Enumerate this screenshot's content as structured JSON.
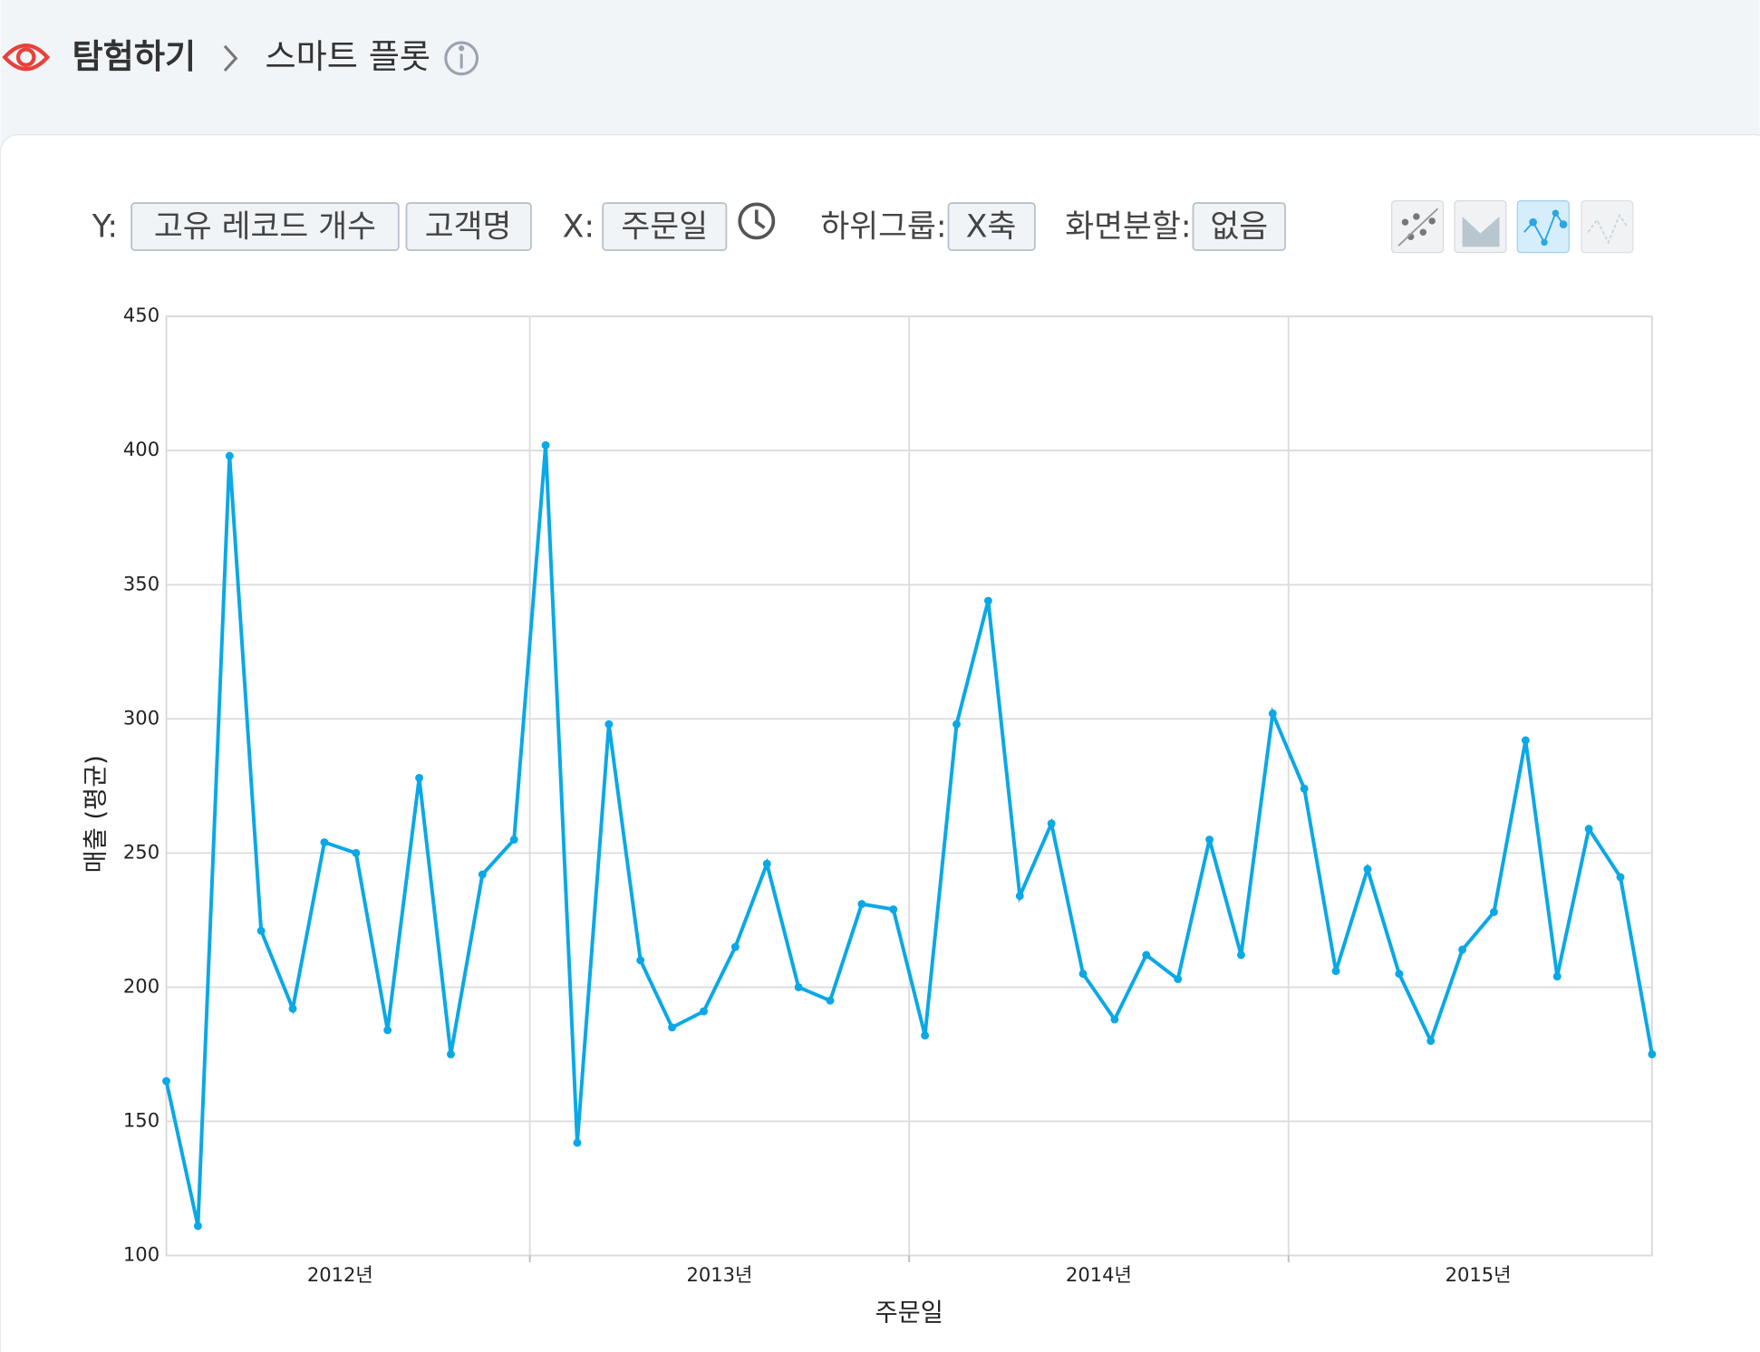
{
  "header": {
    "section": "탐험하기",
    "page": "스마트 플롯"
  },
  "controls": {
    "y_label": "Y:",
    "y_fields": [
      "고유 레코드 개수",
      "고객명"
    ],
    "x_label": "X:",
    "x_field": "주문일",
    "subgroup_label": "하위그룹:",
    "subgroup": "X축",
    "split_label": "화면분할:",
    "split": "없음"
  },
  "chart_data": {
    "type": "line",
    "categories": [
      null,
      null,
      null,
      null,
      null,
      null,
      null,
      null,
      null,
      null,
      null,
      null,
      null,
      null,
      null,
      null,
      null,
      null,
      null,
      null,
      null,
      null,
      null,
      null,
      null,
      null,
      null,
      null,
      null,
      null,
      null,
      null,
      null,
      null,
      null,
      null,
      null,
      null,
      null,
      null,
      null,
      null,
      null,
      null,
      null,
      null,
      null,
      null
    ],
    "year_labels": [
      "2012년",
      "2013년",
      "2014년",
      "2015년"
    ],
    "values": [
      165,
      111,
      398,
      221,
      192,
      254,
      250,
      184,
      278,
      175,
      242,
      255,
      402,
      142,
      298,
      210,
      185,
      191,
      215,
      246,
      200,
      195,
      231,
      229,
      182,
      298,
      344,
      234,
      261,
      205,
      188,
      212,
      203,
      255,
      212,
      302,
      274,
      206,
      244,
      205,
      180,
      214,
      228,
      292,
      204,
      259,
      241,
      175
    ],
    "color": "#0aa8e6",
    "ylim": [
      100,
      450
    ],
    "yticks": [
      100,
      150,
      200,
      250,
      300,
      350,
      400,
      450
    ],
    "ylabel": "매출 (평균)",
    "xlabel": "주문일",
    "grid": true
  }
}
